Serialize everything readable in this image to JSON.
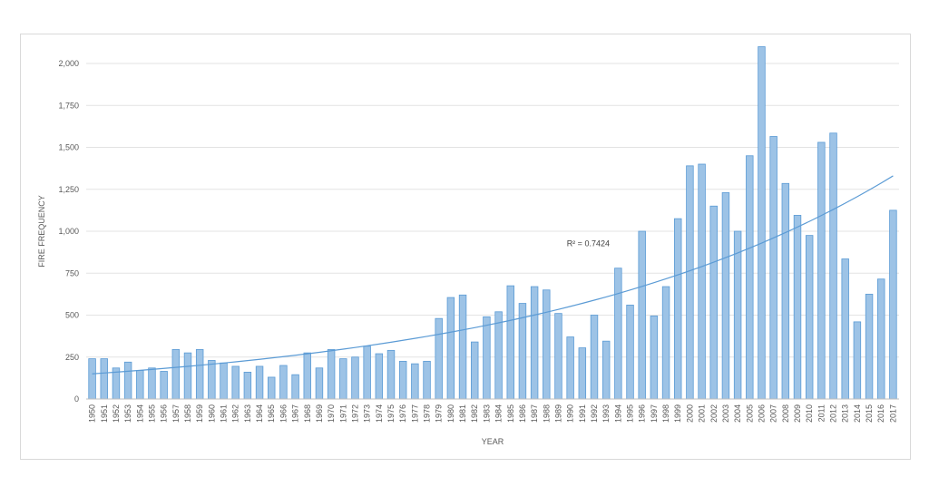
{
  "chart_data": {
    "type": "bar",
    "xlabel": "YEAR",
    "ylabel": "FIRE FREQUENCY",
    "ylim": [
      0,
      2000
    ],
    "yticks": [
      "0",
      "250",
      "500",
      "750",
      "1,000",
      "1,250",
      "1,500",
      "1,750",
      "2,000"
    ],
    "ytick_values": [
      0,
      250,
      500,
      750,
      1000,
      1250,
      1500,
      1750,
      2000
    ],
    "grid": true,
    "legend": "none",
    "bar_color": "#9dc3e6",
    "bar_edge_color": "#5b9bd5",
    "trendline": {
      "type": "exponential",
      "start_value": 150,
      "end_value": 1330,
      "color": "#5b9bd5"
    },
    "annotation": "R² = 0.7424",
    "categories": [
      "1950",
      "1951",
      "1952",
      "1953",
      "1954",
      "1955",
      "1956",
      "1957",
      "1958",
      "1959",
      "1960",
      "1961",
      "1962",
      "1963",
      "1964",
      "1965",
      "1966",
      "1967",
      "1968",
      "1969",
      "1970",
      "1971",
      "1972",
      "1973",
      "1974",
      "1975",
      "1976",
      "1977",
      "1978",
      "1979",
      "1980",
      "1981",
      "1982",
      "1983",
      "1984",
      "1985",
      "1986",
      "1987",
      "1988",
      "1989",
      "1990",
      "1991",
      "1992",
      "1993",
      "1994",
      "1995",
      "1996",
      "1997",
      "1998",
      "1999",
      "2000",
      "2001",
      "2002",
      "2003",
      "2004",
      "2005",
      "2006",
      "2007",
      "2008",
      "2009",
      "2010",
      "2011",
      "2012",
      "2013",
      "2014",
      "2015",
      "2016",
      "2017"
    ],
    "values": [
      240,
      240,
      185,
      220,
      170,
      185,
      165,
      295,
      275,
      295,
      230,
      215,
      195,
      160,
      195,
      130,
      200,
      145,
      275,
      185,
      295,
      240,
      250,
      315,
      270,
      290,
      225,
      210,
      225,
      480,
      605,
      620,
      340,
      490,
      520,
      675,
      570,
      670,
      650,
      510,
      370,
      305,
      500,
      345,
      780,
      560,
      1000,
      495,
      670,
      1075,
      1390,
      1400,
      1150,
      1230,
      1000,
      1450,
      2100,
      1565,
      1285,
      1095,
      975,
      1530,
      1585,
      835,
      460,
      625,
      715,
      1125
    ]
  }
}
